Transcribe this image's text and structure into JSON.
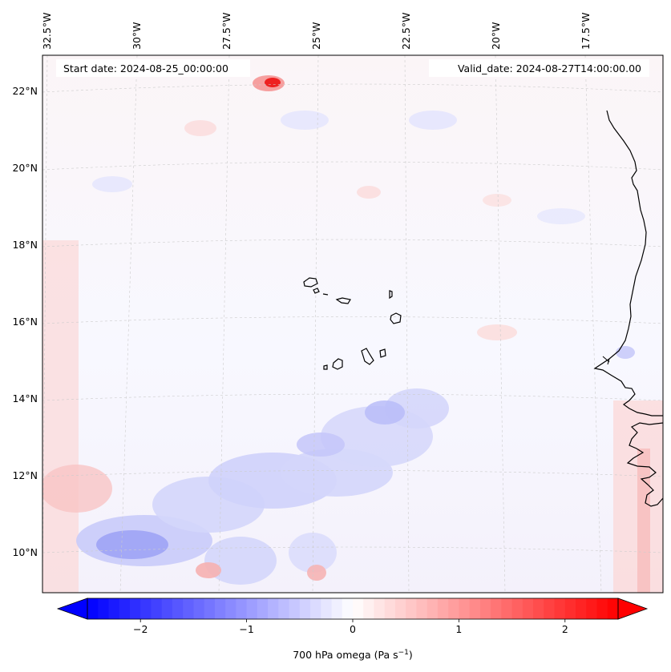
{
  "map": {
    "start_date": "Start date: 2024-08-25_00:00:00",
    "valid_date": "Valid_date: 2024-08-27T14:00:00.00",
    "lon_ticks": [
      {
        "lon": -32.5,
        "label": "32.5°W"
      },
      {
        "lon": -30.0,
        "label": "30°W"
      },
      {
        "lon": -27.5,
        "label": "27.5°W"
      },
      {
        "lon": -25.0,
        "label": "25°W"
      },
      {
        "lon": -22.5,
        "label": "22.5°W"
      },
      {
        "lon": -20.0,
        "label": "20°W"
      },
      {
        "lon": -17.5,
        "label": "17.5°W"
      }
    ],
    "lat_ticks": [
      {
        "lat": 22,
        "label": "22°N"
      },
      {
        "lat": 20,
        "label": "20°N"
      },
      {
        "lat": 18,
        "label": "18°N"
      },
      {
        "lat": 16,
        "label": "16°N"
      },
      {
        "lat": 14,
        "label": "14°N"
      },
      {
        "lat": 12,
        "label": "12°N"
      },
      {
        "lat": 10,
        "label": "10°N"
      }
    ],
    "colors": {
      "negative": "#0000ff",
      "zero": "#ffffff",
      "positive": "#ff0000",
      "coastline": "#000000",
      "grid": "#cccccc"
    }
  },
  "colorbar": {
    "min": -2.5,
    "max": 2.5,
    "ticks": [
      {
        "value": -2,
        "label": "−2"
      },
      {
        "value": -1,
        "label": "−1"
      },
      {
        "value": 0,
        "label": "0"
      },
      {
        "value": 1,
        "label": "1"
      },
      {
        "value": 2,
        "label": "2"
      }
    ],
    "label_main": "700 hPa omega (Pa s",
    "label_sup": "−1",
    "label_end": ")",
    "extend": "both"
  }
}
